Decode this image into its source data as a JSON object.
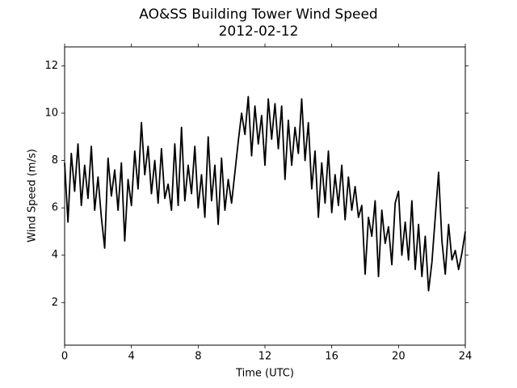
{
  "chart_data": {
    "type": "line",
    "title": "AO&SS Building Tower Wind Speed",
    "subtitle": "2012-02-12",
    "x_label": "Time (UTC)",
    "y_label": "Wind Speed (m/s)",
    "xlim": [
      0,
      24
    ],
    "xticks": [
      0,
      4,
      8,
      12,
      16,
      20,
      24
    ],
    "ylim": [
      0.2,
      12.8
    ],
    "yticks": [
      2,
      4,
      6,
      8,
      10,
      12
    ],
    "grid": false,
    "x": [
      0,
      0.2,
      0.4,
      0.6,
      0.8,
      1,
      1.2,
      1.4,
      1.6,
      1.8,
      2,
      2.2,
      2.4,
      2.6,
      2.8,
      3,
      3.2,
      3.4,
      3.6,
      3.8,
      4,
      4.2,
      4.4,
      4.6,
      4.8,
      5,
      5.2,
      5.4,
      5.6,
      5.8,
      6,
      6.2,
      6.4,
      6.6,
      6.8,
      7,
      7.2,
      7.4,
      7.6,
      7.8,
      8,
      8.2,
      8.4,
      8.6,
      8.8,
      9,
      9.2,
      9.4,
      9.6,
      9.8,
      10,
      10.2,
      10.4,
      10.6,
      10.8,
      11,
      11.2,
      11.4,
      11.6,
      11.8,
      12,
      12.2,
      12.4,
      12.6,
      12.8,
      13,
      13.2,
      13.4,
      13.6,
      13.8,
      14,
      14.2,
      14.4,
      14.6,
      14.8,
      15,
      15.2,
      15.4,
      15.6,
      15.8,
      16,
      16.2,
      16.4,
      16.6,
      16.8,
      17,
      17.2,
      17.4,
      17.6,
      17.8,
      18,
      18.2,
      18.4,
      18.6,
      18.8,
      19,
      19.2,
      19.4,
      19.6,
      19.8,
      20,
      20.2,
      20.4,
      20.6,
      20.8,
      21,
      21.2,
      21.4,
      21.6,
      21.8,
      22,
      22.2,
      22.4,
      22.6,
      22.8,
      23,
      23.2,
      23.4,
      23.6,
      23.8,
      24
    ],
    "series": [
      {
        "name": "Wind Speed",
        "color": "#000000",
        "values": [
          7.9,
          5.4,
          8.3,
          6.7,
          8.7,
          6.1,
          7.8,
          6.4,
          8.6,
          5.9,
          7.3,
          5.6,
          4.3,
          8.1,
          6.5,
          7.6,
          5.9,
          7.9,
          4.6,
          7.2,
          6.1,
          8.4,
          6.8,
          9.6,
          7.4,
          8.6,
          6.6,
          8.0,
          6.2,
          8.5,
          6.4,
          7.0,
          5.9,
          8.7,
          6.1,
          9.4,
          6.3,
          7.8,
          6.6,
          8.6,
          6.0,
          7.4,
          5.6,
          9.0,
          6.3,
          7.8,
          5.3,
          8.1,
          5.9,
          7.2,
          6.2,
          7.5,
          8.8,
          10.0,
          9.1,
          10.7,
          8.2,
          10.3,
          8.7,
          9.9,
          7.8,
          10.6,
          8.9,
          10.4,
          8.5,
          10.3,
          7.2,
          9.7,
          7.8,
          9.4,
          8.3,
          10.6,
          8.0,
          9.6,
          6.8,
          8.4,
          5.6,
          7.9,
          6.2,
          8.4,
          5.8,
          7.4,
          6.1,
          7.8,
          5.5,
          7.3,
          5.9,
          6.9,
          5.6,
          6.1,
          3.2,
          5.6,
          4.8,
          6.3,
          3.1,
          5.9,
          4.5,
          5.2,
          3.6,
          6.2,
          6.7,
          4.0,
          5.4,
          3.8,
          6.3,
          3.4,
          5.3,
          3.1,
          4.8,
          2.5,
          3.7,
          5.6,
          7.5,
          4.6,
          3.2,
          5.3,
          3.8,
          4.2,
          3.4,
          4.1,
          5.0
        ]
      }
    ]
  }
}
